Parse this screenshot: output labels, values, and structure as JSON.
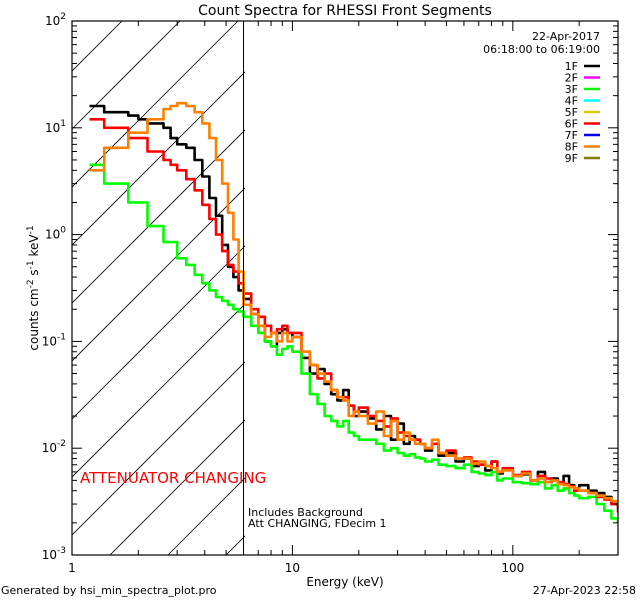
{
  "chart_data": {
    "type": "line",
    "title": "Count Spectra for RHESSI Front Segments",
    "xlabel": "Energy (keV)",
    "ylabel": "counts cm^-2 s^-1 keV^-1",
    "ylabel_parts": {
      "base": "counts cm",
      "e1": "-2",
      "mid1": " s",
      "e2": "-1",
      "mid2": " keV",
      "e3": "-1"
    },
    "xscale": "log",
    "yscale": "log",
    "xlim": [
      1,
      300
    ],
    "ylim": [
      0.001,
      100
    ],
    "x_ticks": [
      {
        "value": 1,
        "label": "1"
      },
      {
        "value": 10,
        "label": "10"
      },
      {
        "value": 100,
        "label": "100"
      }
    ],
    "y_ticks": [
      {
        "value": 100,
        "base": "10",
        "exp": "2"
      },
      {
        "value": 10,
        "base": "10",
        "exp": "1"
      },
      {
        "value": 1,
        "base": "10",
        "exp": "0"
      },
      {
        "value": 0.1,
        "base": "10",
        "exp": "-1"
      },
      {
        "value": 0.01,
        "base": "10",
        "exp": "-2"
      },
      {
        "value": 0.001,
        "base": "10",
        "exp": "-3"
      }
    ],
    "grid": false,
    "date": "22-Apr-2017",
    "time_range": "06:18:00 to 06:19:00",
    "legend_position": "top-right",
    "legend": [
      {
        "label": "1F",
        "color": "#000000"
      },
      {
        "label": "2F",
        "color": "#ff00ff"
      },
      {
        "label": "3F",
        "color": "#00ff00"
      },
      {
        "label": "4F",
        "color": "#00ffff"
      },
      {
        "label": "5F",
        "color": "#d4c800"
      },
      {
        "label": "6F",
        "color": "#ff0000"
      },
      {
        "label": "7F",
        "color": "#0000ff"
      },
      {
        "label": "8F",
        "color": "#ff8000"
      },
      {
        "label": "9F",
        "color": "#7f7f00"
      }
    ],
    "shaded_region": {
      "x_from": 1,
      "x_to": 6.0,
      "style": "hatched"
    },
    "vertical_marker_x": 6.0,
    "annotations": {
      "attenuator": "ATTENUATOR CHANGING",
      "background": "Includes Background",
      "att_state": "Att CHANGING, FDecim  1"
    },
    "series": [
      {
        "name": "1F",
        "color": "#000000",
        "x": [
          1.2,
          1.4,
          1.6,
          1.8,
          2.0,
          2.2,
          2.4,
          2.6,
          2.8,
          3.0,
          3.3,
          3.6,
          3.9,
          4.2,
          4.5,
          4.8,
          5.1,
          5.4,
          5.7,
          6.0,
          6.5,
          7.0,
          7.5,
          8.0,
          8.5,
          9.0,
          9.5,
          10,
          11,
          12,
          13,
          14,
          15,
          16,
          17,
          18,
          19,
          20,
          22,
          24,
          26,
          28,
          30,
          32,
          34,
          36,
          38,
          40,
          43,
          46,
          50,
          55,
          60,
          65,
          70,
          75,
          80,
          85,
          90,
          100,
          110,
          120,
          130,
          140,
          150,
          160,
          170,
          180,
          190,
          200,
          220,
          240,
          260,
          280,
          300
        ],
        "y": [
          16,
          14,
          14,
          13,
          12,
          11,
          11,
          10,
          8,
          7,
          6.5,
          5,
          3.5,
          2.2,
          1.5,
          0.8,
          0.5,
          0.4,
          0.3,
          0.25,
          0.18,
          0.14,
          0.1,
          0.09,
          0.12,
          0.13,
          0.12,
          0.11,
          0.07,
          0.05,
          0.055,
          0.04,
          0.032,
          0.028,
          0.035,
          0.025,
          0.02,
          0.022,
          0.019,
          0.015,
          0.02,
          0.012,
          0.017,
          0.011,
          0.013,
          0.012,
          0.011,
          0.0095,
          0.011,
          0.0085,
          0.009,
          0.0075,
          0.008,
          0.0068,
          0.007,
          0.0062,
          0.0075,
          0.0058,
          0.0063,
          0.0055,
          0.0057,
          0.005,
          0.006,
          0.0048,
          0.0052,
          0.0047,
          0.0055,
          0.0045,
          0.0042,
          0.0045,
          0.004,
          0.0038,
          0.0035,
          0.003,
          0.0028
        ]
      },
      {
        "name": "3F",
        "color": "#00ff00",
        "x": [
          1.2,
          1.4,
          1.6,
          1.8,
          2.0,
          2.2,
          2.4,
          2.6,
          2.8,
          3.0,
          3.3,
          3.6,
          3.9,
          4.2,
          4.5,
          4.8,
          5.1,
          5.4,
          5.7,
          6.0,
          6.5,
          7.0,
          7.5,
          8.0,
          8.5,
          9.0,
          9.5,
          10,
          11,
          12,
          13,
          14,
          15,
          16,
          17,
          18,
          19,
          20,
          22,
          24,
          26,
          28,
          30,
          32,
          34,
          36,
          38,
          40,
          43,
          46,
          50,
          55,
          60,
          65,
          70,
          75,
          80,
          85,
          90,
          100,
          110,
          120,
          130,
          140,
          150,
          160,
          170,
          180,
          190,
          200,
          220,
          240,
          260,
          280,
          300
        ],
        "y": [
          4.5,
          3.0,
          3.0,
          2.0,
          2.0,
          1.2,
          1.2,
          0.85,
          0.85,
          0.6,
          0.52,
          0.42,
          0.35,
          0.3,
          0.26,
          0.24,
          0.22,
          0.2,
          0.19,
          0.17,
          0.14,
          0.12,
          0.1,
          0.09,
          0.075,
          0.085,
          0.09,
          0.08,
          0.05,
          0.032,
          0.026,
          0.02,
          0.018,
          0.016,
          0.018,
          0.014,
          0.013,
          0.012,
          0.012,
          0.011,
          0.0095,
          0.01,
          0.009,
          0.0085,
          0.0088,
          0.0082,
          0.008,
          0.0075,
          0.0078,
          0.007,
          0.0068,
          0.0065,
          0.007,
          0.006,
          0.0058,
          0.0056,
          0.006,
          0.005,
          0.0052,
          0.0048,
          0.0047,
          0.0046,
          0.0048,
          0.0042,
          0.0045,
          0.004,
          0.0042,
          0.0038,
          0.0036,
          0.0034,
          0.0035,
          0.003,
          0.0026,
          0.0022,
          0.002
        ]
      },
      {
        "name": "6F",
        "color": "#ff0000",
        "x": [
          1.2,
          1.4,
          1.6,
          1.8,
          2.0,
          2.2,
          2.4,
          2.6,
          2.8,
          3.0,
          3.3,
          3.6,
          3.9,
          4.2,
          4.5,
          4.8,
          5.1,
          5.4,
          5.7,
          6.0,
          6.5,
          7.0,
          7.5,
          8.0,
          8.5,
          9.0,
          9.5,
          10,
          11,
          12,
          13,
          14,
          15,
          16,
          17,
          18,
          19,
          20,
          22,
          24,
          26,
          28,
          30,
          32,
          34,
          36,
          38,
          40,
          43,
          46,
          50,
          55,
          60,
          65,
          70,
          75,
          80,
          85,
          90,
          100,
          110,
          120,
          130,
          140,
          150,
          160,
          170,
          180,
          190,
          200,
          220,
          240,
          260,
          280,
          300
        ],
        "y": [
          12,
          10,
          10,
          8,
          8,
          6,
          6,
          5,
          4.5,
          4,
          3.3,
          2.6,
          1.9,
          1.4,
          1.0,
          0.7,
          0.52,
          0.45,
          0.35,
          0.28,
          0.2,
          0.17,
          0.14,
          0.12,
          0.13,
          0.14,
          0.12,
          0.12,
          0.08,
          0.06,
          0.045,
          0.05,
          0.035,
          0.03,
          0.03,
          0.025,
          0.022,
          0.024,
          0.02,
          0.018,
          0.016,
          0.019,
          0.014,
          0.013,
          0.012,
          0.012,
          0.011,
          0.01,
          0.011,
          0.009,
          0.0095,
          0.008,
          0.0082,
          0.0075,
          0.007,
          0.0068,
          0.0075,
          0.006,
          0.0065,
          0.0056,
          0.006,
          0.005,
          0.0055,
          0.0052,
          0.005,
          0.0048,
          0.0046,
          0.0044,
          0.004,
          0.004,
          0.0038,
          0.0035,
          0.0033,
          0.003,
          0.0025
        ]
      },
      {
        "name": "8F",
        "color": "#ff8000",
        "x": [
          1.2,
          1.4,
          1.6,
          1.8,
          2.0,
          2.2,
          2.4,
          2.6,
          2.8,
          3.0,
          3.3,
          3.6,
          3.9,
          4.2,
          4.5,
          4.8,
          5.1,
          5.4,
          5.7,
          6.0,
          6.5,
          7.0,
          7.5,
          8.0,
          8.5,
          9.0,
          9.5,
          10,
          11,
          12,
          13,
          14,
          15,
          16,
          17,
          18,
          19,
          20,
          22,
          24,
          26,
          28,
          30,
          32,
          34,
          36,
          38,
          40,
          43,
          46,
          50,
          55,
          60,
          65,
          70,
          75,
          80,
          85,
          90,
          100,
          110,
          120,
          130,
          140,
          150,
          160,
          170,
          180,
          190,
          200,
          220,
          240,
          260,
          280,
          300
        ],
        "y": [
          4.0,
          6.5,
          6.5,
          9,
          9,
          12,
          12,
          15,
          16,
          17,
          16,
          14,
          11,
          8,
          5,
          3,
          1.6,
          0.9,
          0.45,
          0.22,
          0.18,
          0.14,
          0.11,
          0.12,
          0.1,
          0.12,
          0.1,
          0.11,
          0.08,
          0.06,
          0.05,
          0.042,
          0.035,
          0.03,
          0.028,
          0.02,
          0.022,
          0.02,
          0.017,
          0.022,
          0.013,
          0.018,
          0.012,
          0.014,
          0.012,
          0.011,
          0.011,
          0.01,
          0.012,
          0.009,
          0.0085,
          0.008,
          0.008,
          0.0072,
          0.0075,
          0.0068,
          0.0065,
          0.006,
          0.0062,
          0.0055,
          0.0058,
          0.005,
          0.0052,
          0.0048,
          0.005,
          0.0046,
          0.0045,
          0.0043,
          0.0042,
          0.004,
          0.0038,
          0.0036,
          0.0034,
          0.0032,
          0.003
        ]
      }
    ]
  },
  "footer": {
    "generated_by": "Generated by hsi_min_spectra_plot.pro",
    "timestamp": "27-Apr-2023 22:58"
  }
}
